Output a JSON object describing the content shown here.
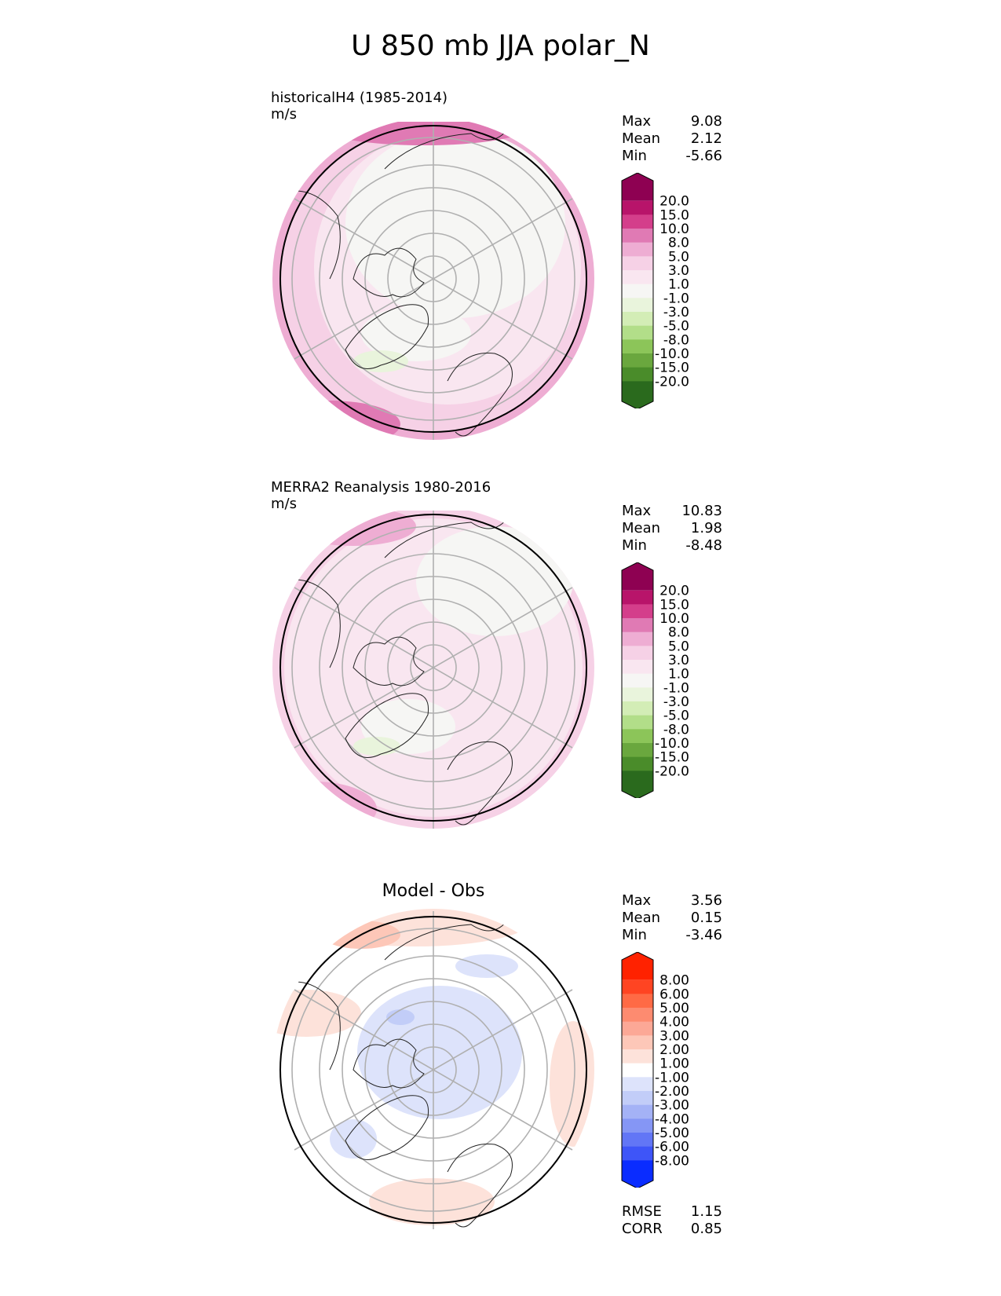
{
  "title": "U 850 mb JJA polar_N",
  "panels": [
    {
      "id": "model",
      "title_line1": "historicalH4 (1985-2014)",
      "title_line2": "m/s",
      "stats": {
        "max": "9.08",
        "mean": "2.12",
        "min": "-5.66"
      }
    },
    {
      "id": "obs",
      "title_line1": "MERRA2 Reanalysis 1980-2016",
      "title_line2": "m/s",
      "stats": {
        "max": "10.83",
        "mean": "1.98",
        "min": "-8.48"
      }
    },
    {
      "id": "diff",
      "title_line1": "Model - Obs",
      "stats": {
        "max": "3.56",
        "mean": "0.15",
        "min": "-3.46"
      },
      "metrics": {
        "rmse": "1.15",
        "corr": "0.85"
      }
    }
  ],
  "stat_labels": {
    "max": "Max",
    "mean": "Mean",
    "min": "Min",
    "rmse": "RMSE",
    "corr": "CORR"
  },
  "chart_data": [
    {
      "type": "heatmap",
      "projection": "north polar stereographic",
      "variable": "U 850 mb",
      "colorbar": {
        "levels": [
          "20.0",
          "15.0",
          "10.0",
          "8.0",
          "5.0",
          "3.0",
          "1.0",
          "-1.0",
          "-3.0",
          "-5.0",
          "-8.0",
          "-10.0",
          "-15.0",
          "-20.0"
        ],
        "colors": [
          "#8e0152",
          "#b8146a",
          "#d43e8b",
          "#e07ab4",
          "#eeadd3",
          "#f6d1e6",
          "#f9e6f0",
          "#f6f6f4",
          "#e9f4dc",
          "#d3edb6",
          "#b2de89",
          "#8cc559",
          "#6aa73e",
          "#4a8c2a",
          "#2a6a1d"
        ],
        "extend": "both"
      }
    },
    {
      "type": "heatmap",
      "projection": "north polar stereographic",
      "variable": "U 850 mb",
      "colorbar": {
        "levels": [
          "20.0",
          "15.0",
          "10.0",
          "8.0",
          "5.0",
          "3.0",
          "1.0",
          "-1.0",
          "-3.0",
          "-5.0",
          "-8.0",
          "-10.0",
          "-15.0",
          "-20.0"
        ],
        "colors": [
          "#8e0152",
          "#b8146a",
          "#d43e8b",
          "#e07ab4",
          "#eeadd3",
          "#f6d1e6",
          "#f9e6f0",
          "#f6f6f4",
          "#e9f4dc",
          "#d3edb6",
          "#b2de89",
          "#8cc559",
          "#6aa73e",
          "#4a8c2a",
          "#2a6a1d"
        ],
        "extend": "both"
      }
    },
    {
      "type": "heatmap",
      "projection": "north polar stereographic",
      "variable": "U 850 mb difference",
      "colorbar": {
        "levels": [
          "8.00",
          "6.00",
          "5.00",
          "4.00",
          "3.00",
          "2.00",
          "1.00",
          "-1.00",
          "-2.00",
          "-3.00",
          "-4.00",
          "-5.00",
          "-6.00",
          "-8.00"
        ],
        "colors": [
          "#ff2200",
          "#ff4422",
          "#ff6a45",
          "#fd8b70",
          "#fca896",
          "#fdc7b8",
          "#fde2da",
          "#ffffff",
          "#dde3fb",
          "#c2cdf8",
          "#a4b2f6",
          "#8596f5",
          "#6276f6",
          "#3e55f8",
          "#0a2cff"
        ],
        "extend": "both"
      }
    }
  ]
}
